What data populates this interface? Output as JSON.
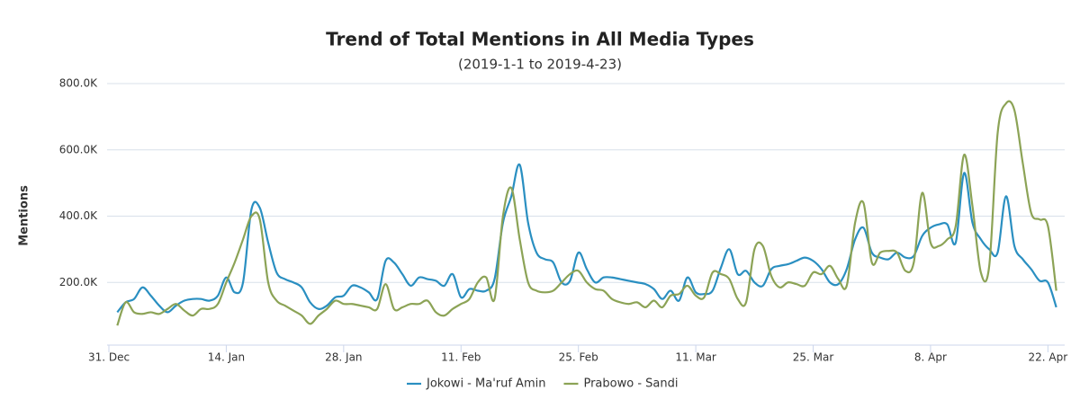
{
  "chart_data": {
    "type": "line",
    "title": "Trend of Total Mentions in All Media Types",
    "subtitle": "(2019-1-1 to 2019-4-23)",
    "y_label": "Mentions",
    "x": [
      1,
      2,
      3,
      4,
      5,
      6,
      7,
      8,
      9,
      10,
      11,
      12,
      13,
      14,
      15,
      16,
      17,
      18,
      19,
      20,
      21,
      22,
      23,
      24,
      25,
      26,
      27,
      28,
      29,
      30,
      31,
      32,
      33,
      34,
      35,
      36,
      37,
      38,
      39,
      40,
      41,
      42,
      43,
      44,
      45,
      46,
      47,
      48,
      49,
      50,
      51,
      52,
      53,
      54,
      55,
      56,
      57,
      58,
      59,
      60,
      61,
      62,
      63,
      64,
      65,
      66,
      67,
      68,
      69,
      70,
      71,
      72,
      73,
      74,
      75,
      76,
      77,
      78,
      79,
      80,
      81,
      82,
      83,
      84,
      85,
      86,
      87,
      88,
      89,
      90,
      91,
      92,
      93,
      94,
      95,
      96,
      97,
      98,
      99,
      100,
      101,
      102,
      103,
      104,
      105,
      106,
      107,
      108,
      109,
      110,
      111,
      112,
      113
    ],
    "xlim": [
      0,
      114
    ],
    "xticks": [
      {
        "value": 0,
        "label": "31. Dec"
      },
      {
        "value": 14,
        "label": "14. Jan"
      },
      {
        "value": 28,
        "label": "28. Jan"
      },
      {
        "value": 42,
        "label": "11. Feb"
      },
      {
        "value": 56,
        "label": "25. Feb"
      },
      {
        "value": 70,
        "label": "11. Mar"
      },
      {
        "value": 84,
        "label": "25. Mar"
      },
      {
        "value": 98,
        "label": "8. Apr"
      },
      {
        "value": 112,
        "label": "22. Apr"
      }
    ],
    "ylim": [
      0,
      800000
    ],
    "yticks": [
      {
        "value": 200000,
        "label": "200.0K"
      },
      {
        "value": 400000,
        "label": "400.0K"
      },
      {
        "value": 600000,
        "label": "600.0K"
      },
      {
        "value": 800000,
        "label": "800.0K"
      }
    ],
    "grid": true,
    "legend": "bottom",
    "series": [
      {
        "name": "Jokowi - Ma'ruf Amin",
        "color": "#2a8fc1",
        "values": [
          110000,
          140000,
          150000,
          185000,
          160000,
          130000,
          110000,
          130000,
          145000,
          150000,
          150000,
          145000,
          160000,
          215000,
          170000,
          200000,
          420000,
          425000,
          320000,
          230000,
          210000,
          200000,
          185000,
          140000,
          120000,
          130000,
          155000,
          160000,
          190000,
          185000,
          170000,
          150000,
          265000,
          260000,
          225000,
          190000,
          215000,
          210000,
          205000,
          190000,
          225000,
          155000,
          180000,
          175000,
          175000,
          210000,
          380000,
          460000,
          555000,
          380000,
          290000,
          270000,
          260000,
          200000,
          205000,
          290000,
          240000,
          200000,
          215000,
          215000,
          210000,
          205000,
          200000,
          195000,
          180000,
          150000,
          175000,
          145000,
          215000,
          170000,
          165000,
          175000,
          245000,
          300000,
          225000,
          235000,
          200000,
          190000,
          240000,
          250000,
          255000,
          265000,
          275000,
          265000,
          240000,
          200000,
          195000,
          240000,
          330000,
          365000,
          290000,
          275000,
          270000,
          290000,
          275000,
          280000,
          340000,
          365000,
          375000,
          375000,
          320000,
          530000,
          380000,
          330000,
          300000,
          290000,
          460000,
          310000,
          270000,
          240000,
          205000,
          200000,
          125000
        ]
      },
      {
        "name": "Prabowo - Sandi",
        "color": "#8ca356",
        "values": [
          70000,
          140000,
          110000,
          105000,
          110000,
          105000,
          120000,
          135000,
          115000,
          100000,
          120000,
          120000,
          135000,
          200000,
          260000,
          330000,
          400000,
          390000,
          200000,
          145000,
          130000,
          115000,
          100000,
          75000,
          100000,
          120000,
          145000,
          135000,
          135000,
          130000,
          125000,
          120000,
          195000,
          120000,
          125000,
          135000,
          135000,
          145000,
          110000,
          100000,
          120000,
          135000,
          150000,
          200000,
          215000,
          150000,
          400000,
          485000,
          330000,
          200000,
          175000,
          170000,
          175000,
          200000,
          225000,
          235000,
          200000,
          180000,
          175000,
          150000,
          140000,
          135000,
          140000,
          125000,
          145000,
          125000,
          160000,
          165000,
          190000,
          160000,
          155000,
          230000,
          225000,
          210000,
          150000,
          140000,
          300000,
          310000,
          220000,
          185000,
          200000,
          195000,
          190000,
          230000,
          225000,
          250000,
          210000,
          190000,
          380000,
          440000,
          260000,
          290000,
          295000,
          290000,
          235000,
          260000,
          470000,
          320000,
          310000,
          330000,
          370000,
          585000,
          430000,
          230000,
          250000,
          650000,
          740000,
          720000,
          560000,
          410000,
          390000,
          370000,
          175000
        ]
      }
    ]
  }
}
